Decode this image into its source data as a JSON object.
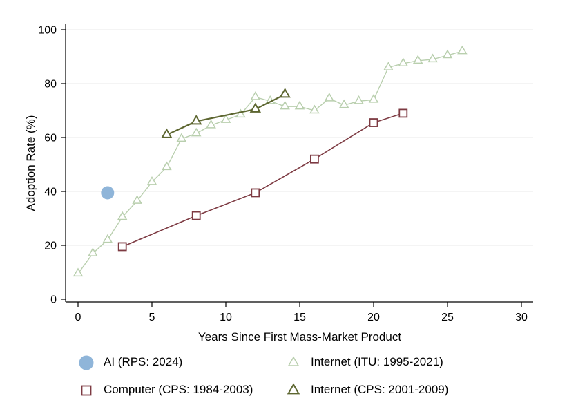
{
  "chart_data": {
    "type": "scatter-line",
    "title": "",
    "xlabel": "Years Since First Mass-Market Product",
    "ylabel": "Adoption Rate (%)",
    "xlim": [
      0,
      30
    ],
    "ylim": [
      0,
      100
    ],
    "xticks": [
      0,
      5,
      10,
      15,
      20,
      25,
      30
    ],
    "yticks": [
      0,
      20,
      40,
      60,
      80,
      100
    ],
    "grid": "horizontal",
    "grid_color": "#e8e8e8",
    "axis_color": "#000000",
    "background_color": "#ffffff",
    "legend_position": "bottom",
    "series": [
      {
        "id": "ai",
        "name": "AI (RPS: 2024)",
        "marker": "filled-circle",
        "color": "#8fb5d9",
        "line": false,
        "line_width": 0,
        "marker_size": 9.5,
        "marker_stroke": 0,
        "points": [
          [
            2,
            39.5
          ]
        ]
      },
      {
        "id": "internet-itu",
        "name": "Internet (ITU: 1995-2021)",
        "marker": "open-triangle",
        "color": "#b9cfae",
        "line": true,
        "line_width": 1.4,
        "marker_size": 6,
        "marker_stroke": 1.5,
        "points": [
          [
            0,
            9.5
          ],
          [
            1,
            17
          ],
          [
            2,
            22
          ],
          [
            3,
            30.5
          ],
          [
            4,
            36.5
          ],
          [
            5,
            43.5
          ],
          [
            6,
            49
          ],
          [
            7,
            59.5
          ],
          [
            8,
            61.5
          ],
          [
            9,
            64.5
          ],
          [
            10,
            66.5
          ],
          [
            11,
            68.5
          ],
          [
            12,
            75
          ],
          [
            13,
            73.5
          ],
          [
            14,
            71.5
          ],
          [
            15,
            71.5
          ],
          [
            16,
            70
          ],
          [
            17,
            74.5
          ],
          [
            18,
            72
          ],
          [
            19,
            73.5
          ],
          [
            20,
            74
          ],
          [
            21,
            86
          ],
          [
            22,
            87.5
          ],
          [
            23,
            88.5
          ],
          [
            24,
            89
          ],
          [
            25,
            90.5
          ],
          [
            26,
            92
          ]
        ]
      },
      {
        "id": "computer",
        "name": "Computer (CPS: 1984-2003)",
        "marker": "open-square",
        "color": "#7d3a42",
        "line": true,
        "line_width": 1.6,
        "marker_size": 5.5,
        "marker_stroke": 1.8,
        "points": [
          [
            3,
            19.5
          ],
          [
            8,
            31
          ],
          [
            12,
            39.5
          ],
          [
            16,
            52
          ],
          [
            20,
            65.5
          ],
          [
            22,
            69
          ]
        ]
      },
      {
        "id": "internet-cps",
        "name": "Internet (CPS: 2001-2009)",
        "marker": "open-triangle",
        "color": "#5d6630",
        "line": true,
        "line_width": 2.2,
        "marker_size": 6.5,
        "marker_stroke": 2,
        "points": [
          [
            6,
            61
          ],
          [
            8,
            66
          ],
          [
            12,
            70.5
          ],
          [
            14,
            76
          ]
        ]
      }
    ]
  }
}
